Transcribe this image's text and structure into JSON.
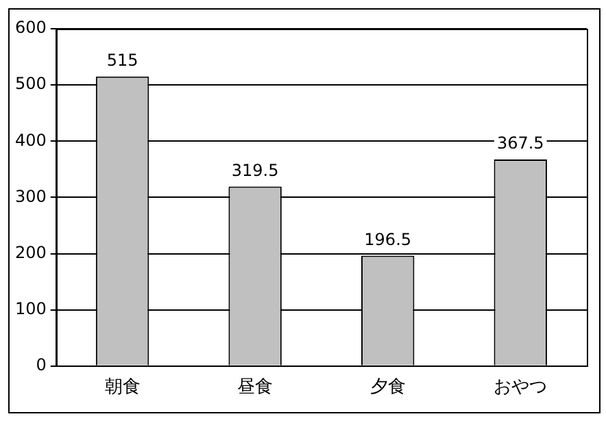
{
  "chart_data": {
    "type": "bar",
    "categories": [
      "朝食",
      "昼食",
      "夕食",
      "おやつ"
    ],
    "values": [
      515,
      319.5,
      196.5,
      367.5
    ],
    "color": "#c0c0c0",
    "ylim": [
      0,
      600
    ],
    "yticks": [
      0,
      100,
      200,
      300,
      400,
      500,
      600
    ],
    "grid": "y",
    "data_labels": true,
    "legend": false
  }
}
